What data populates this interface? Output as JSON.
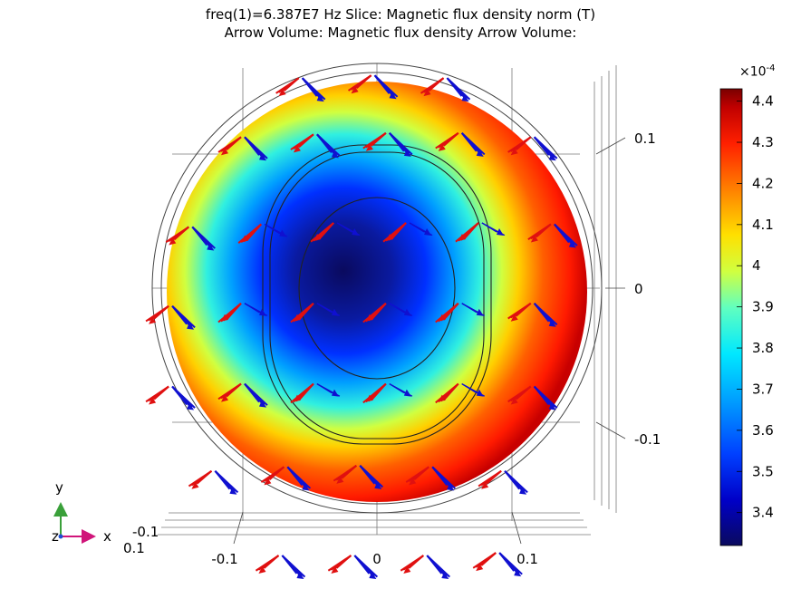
{
  "title": {
    "line1": "freq(1)=6.387E7 Hz   Slice: Magnetic flux density norm (T)",
    "line2": "Arrow Volume: Magnetic flux density  Arrow Volume:"
  },
  "chart_data": {
    "type": "heatmap",
    "description_plot": "3D slice with arrow volume, viewed along z",
    "quantity": "Magnetic flux density norm (T)",
    "frequency": "6.387E7 Hz",
    "x_ticks": [
      "-0.1",
      "0",
      "0.1"
    ],
    "y_ticks": [
      "0.1",
      "0",
      "-0.1"
    ],
    "z_ticks": [
      "-0.1",
      "0.1"
    ],
    "colorbar": {
      "min": 3.32,
      "max": 4.43,
      "multiplier": "×10",
      "exponent": "-4",
      "ticks": [
        "4.4",
        "4.3",
        "4.2",
        "4.1",
        "4",
        "3.9",
        "3.8",
        "3.7",
        "3.6",
        "3.5",
        "3.4"
      ],
      "colormap": [
        "#0a0a5e",
        "#0000c8",
        "#0060ff",
        "#00c8ff",
        "#40ffd0",
        "#c8ff40",
        "#ffe000",
        "#ff8000",
        "#ff2000",
        "#c00000",
        "#7a0000"
      ]
    },
    "field": {
      "center_value": 3.33,
      "rim_value": 4.43
    },
    "arrows": [
      {
        "x": -0.057,
        "y": 0.158
      },
      {
        "x": -0.003,
        "y": 0.16
      },
      {
        "x": 0.051,
        "y": 0.158
      },
      {
        "x": -0.1,
        "y": 0.114
      },
      {
        "x": -0.046,
        "y": 0.116
      },
      {
        "x": 0.008,
        "y": 0.117
      },
      {
        "x": 0.062,
        "y": 0.117
      },
      {
        "x": 0.116,
        "y": 0.114
      },
      {
        "x": -0.139,
        "y": 0.047
      },
      {
        "x": -0.085,
        "y": 0.049
      },
      {
        "x": -0.031,
        "y": 0.05
      },
      {
        "x": 0.023,
        "y": 0.05
      },
      {
        "x": 0.077,
        "y": 0.05
      },
      {
        "x": 0.131,
        "y": 0.049
      },
      {
        "x": -0.154,
        "y": -0.012
      },
      {
        "x": -0.1,
        "y": -0.01
      },
      {
        "x": -0.046,
        "y": -0.01
      },
      {
        "x": 0.008,
        "y": -0.01
      },
      {
        "x": 0.062,
        "y": -0.01
      },
      {
        "x": 0.116,
        "y": -0.01
      },
      {
        "x": -0.154,
        "y": -0.072
      },
      {
        "x": -0.1,
        "y": -0.07
      },
      {
        "x": -0.046,
        "y": -0.07
      },
      {
        "x": 0.008,
        "y": -0.07
      },
      {
        "x": 0.062,
        "y": -0.07
      },
      {
        "x": 0.116,
        "y": -0.072
      },
      {
        "x": -0.122,
        "y": -0.135
      },
      {
        "x": -0.068,
        "y": -0.132
      },
      {
        "x": -0.014,
        "y": -0.131
      },
      {
        "x": 0.04,
        "y": -0.132
      },
      {
        "x": 0.094,
        "y": -0.135
      },
      {
        "x": -0.072,
        "y": -0.198
      },
      {
        "x": -0.018,
        "y": -0.198
      },
      {
        "x": 0.036,
        "y": -0.198
      },
      {
        "x": 0.09,
        "y": -0.196
      }
    ],
    "triad": {
      "x_label": "x",
      "y_label": "y",
      "z_label": "z"
    }
  }
}
